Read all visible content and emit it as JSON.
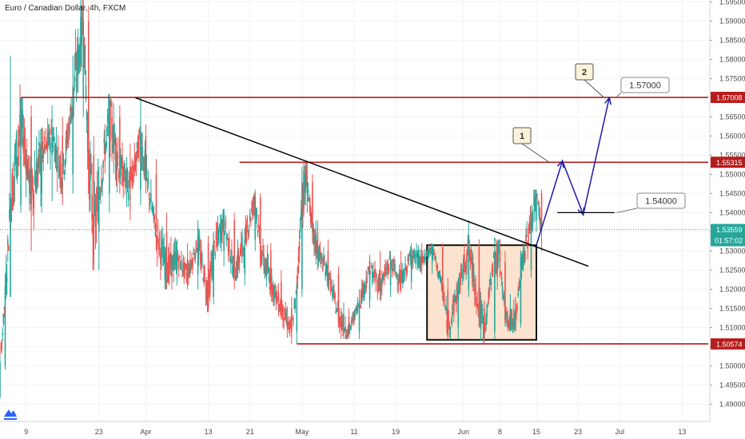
{
  "chart_title": "Euro / Canadian Dollar, 4h, FXCM",
  "countdown": "01:57:02",
  "colors": {
    "bull": "#26a69a",
    "bear": "#ef5350",
    "level": "#b71c1c",
    "trend": "#000000",
    "path": "#1a1aa8",
    "box_fill": "#fbe3cf",
    "grid": "#f0f3f5"
  },
  "chart_data": {
    "type": "candlestick",
    "title": "Euro / Canadian Dollar, 4h, FXCM",
    "ylim": [
      1.4855,
      1.5955
    ],
    "y_ticks": [
      "1.59500",
      "1.59000",
      "1.58500",
      "1.58000",
      "1.57500",
      "1.57000",
      "1.56500",
      "1.56000",
      "1.55500",
      "1.55000",
      "1.54500",
      "1.54000",
      "1.53500",
      "1.53000",
      "1.52500",
      "1.52000",
      "1.51500",
      "1.51000",
      "1.50500",
      "1.50000",
      "1.49500",
      "1.49000"
    ],
    "x_ticks": [
      {
        "label": "9",
        "day": 9
      },
      {
        "label": "23",
        "day": 23
      },
      {
        "label": "Apr",
        "day": 32
      },
      {
        "label": "13",
        "day": 44
      },
      {
        "label": "21",
        "day": 52
      },
      {
        "label": "May",
        "day": 62
      },
      {
        "label": "11",
        "day": 72
      },
      {
        "label": "19",
        "day": 80
      },
      {
        "label": "Jun",
        "day": 93
      },
      {
        "label": "8",
        "day": 100
      },
      {
        "label": "15",
        "day": 107
      },
      {
        "label": "23",
        "day": 115
      },
      {
        "label": "Jul",
        "day": 123
      },
      {
        "label": "13",
        "day": 135
      }
    ],
    "x_range_days": [
      4,
      140
    ],
    "current_price": "1.53559",
    "levels": [
      {
        "value": 1.57008,
        "label": "1.57008",
        "from_day": 8
      },
      {
        "value": 1.55315,
        "label": "1.55315",
        "from_day": 50
      },
      {
        "value": 1.50574,
        "label": "1.50574",
        "from_day": 61
      }
    ],
    "trendline": [
      [
        30,
        1.57
      ],
      [
        117,
        1.526
      ]
    ],
    "range_box": {
      "from_day": 86,
      "to_day": 107,
      "top": 1.5315,
      "bottom": 1.5068
    },
    "projection": [
      [
        107,
        1.5315
      ],
      [
        112,
        1.5535
      ],
      [
        116,
        1.5395
      ],
      [
        121,
        1.57
      ]
    ],
    "targets": [
      {
        "value": 1.54,
        "label": "1.54000",
        "line_from_day": 111,
        "line_to_day": 122
      },
      {
        "value": 1.57,
        "label": "1.57000"
      }
    ],
    "markers": [
      {
        "label": "1"
      },
      {
        "label": "2"
      }
    ],
    "anchors": [
      {
        "x": 1,
        "o": 1.4903,
        "c": 1.4912,
        "h": 1.4935,
        "l": 1.489
      },
      {
        "x": 2,
        "o": 1.4912,
        "c": 1.4945,
        "h": 1.497,
        "l": 1.49
      },
      {
        "x": 3,
        "o": 1.4945,
        "c": 1.492,
        "h": 1.496,
        "l": 1.4905
      },
      {
        "x": 4,
        "o": 1.492,
        "c": 1.5,
        "h": 1.502,
        "l": 1.4915
      },
      {
        "x": 5,
        "o": 1.5,
        "c": 1.518,
        "h": 1.523,
        "l": 1.499
      },
      {
        "x": 6,
        "o": 1.518,
        "c": 1.542,
        "h": 1.581,
        "l": 1.539
      },
      {
        "x": 8,
        "o": 1.542,
        "c": 1.565,
        "h": 1.57,
        "l": 1.54
      },
      {
        "x": 10,
        "o": 1.565,
        "c": 1.545,
        "h": 1.568,
        "l": 1.53
      },
      {
        "x": 12,
        "o": 1.545,
        "c": 1.555,
        "h": 1.562,
        "l": 1.54
      },
      {
        "x": 14,
        "o": 1.555,
        "c": 1.56,
        "h": 1.568,
        "l": 1.543
      },
      {
        "x": 16,
        "o": 1.56,
        "c": 1.55,
        "h": 1.565,
        "l": 1.542
      },
      {
        "x": 18,
        "o": 1.55,
        "c": 1.57,
        "h": 1.581,
        "l": 1.545
      },
      {
        "x": 20,
        "o": 1.57,
        "c": 1.59,
        "h": 1.596,
        "l": 1.565
      },
      {
        "x": 21,
        "o": 1.59,
        "c": 1.555,
        "h": 1.594,
        "l": 1.545
      },
      {
        "x": 22,
        "o": 1.555,
        "c": 1.535,
        "h": 1.56,
        "l": 1.525
      },
      {
        "x": 23,
        "o": 1.535,
        "c": 1.545,
        "h": 1.552,
        "l": 1.525
      },
      {
        "x": 25,
        "o": 1.545,
        "c": 1.565,
        "h": 1.571,
        "l": 1.54
      },
      {
        "x": 27,
        "o": 1.565,
        "c": 1.552,
        "h": 1.568,
        "l": 1.545
      },
      {
        "x": 29,
        "o": 1.552,
        "c": 1.546,
        "h": 1.558,
        "l": 1.538
      },
      {
        "x": 31,
        "o": 1.546,
        "c": 1.56,
        "h": 1.57,
        "l": 1.542
      },
      {
        "x": 32,
        "o": 1.56,
        "c": 1.55,
        "h": 1.563,
        "l": 1.545
      },
      {
        "x": 34,
        "o": 1.55,
        "c": 1.535,
        "h": 1.554,
        "l": 1.53
      },
      {
        "x": 36,
        "o": 1.535,
        "c": 1.525,
        "h": 1.54,
        "l": 1.52
      },
      {
        "x": 38,
        "o": 1.525,
        "c": 1.528,
        "h": 1.533,
        "l": 1.521
      },
      {
        "x": 40,
        "o": 1.528,
        "c": 1.524,
        "h": 1.532,
        "l": 1.52
      },
      {
        "x": 42,
        "o": 1.524,
        "c": 1.532,
        "h": 1.538,
        "l": 1.52
      },
      {
        "x": 44,
        "o": 1.532,
        "c": 1.518,
        "h": 1.534,
        "l": 1.514
      },
      {
        "x": 45,
        "o": 1.518,
        "c": 1.53,
        "h": 1.535,
        "l": 1.516
      },
      {
        "x": 47,
        "o": 1.53,
        "c": 1.538,
        "h": 1.541,
        "l": 1.526
      },
      {
        "x": 49,
        "o": 1.538,
        "c": 1.524,
        "h": 1.54,
        "l": 1.52
      },
      {
        "x": 51,
        "o": 1.524,
        "c": 1.533,
        "h": 1.536,
        "l": 1.521
      },
      {
        "x": 53,
        "o": 1.533,
        "c": 1.544,
        "h": 1.546,
        "l": 1.53
      },
      {
        "x": 54,
        "o": 1.544,
        "c": 1.53,
        "h": 1.545,
        "l": 1.526
      },
      {
        "x": 56,
        "o": 1.53,
        "c": 1.522,
        "h": 1.532,
        "l": 1.518
      },
      {
        "x": 58,
        "o": 1.522,
        "c": 1.515,
        "h": 1.525,
        "l": 1.512
      },
      {
        "x": 60,
        "o": 1.515,
        "c": 1.509,
        "h": 1.518,
        "l": 1.5057
      },
      {
        "x": 61,
        "o": 1.509,
        "c": 1.52,
        "h": 1.522,
        "l": 1.5057
      },
      {
        "x": 62,
        "o": 1.52,
        "c": 1.545,
        "h": 1.552,
        "l": 1.518
      },
      {
        "x": 63,
        "o": 1.545,
        "c": 1.548,
        "h": 1.553,
        "l": 1.54
      },
      {
        "x": 64,
        "o": 1.548,
        "c": 1.535,
        "h": 1.55,
        "l": 1.532
      },
      {
        "x": 65,
        "o": 1.535,
        "c": 1.53,
        "h": 1.538,
        "l": 1.525
      },
      {
        "x": 67,
        "o": 1.53,
        "c": 1.524,
        "h": 1.533,
        "l": 1.52
      },
      {
        "x": 69,
        "o": 1.524,
        "c": 1.513,
        "h": 1.526,
        "l": 1.51
      },
      {
        "x": 71,
        "o": 1.513,
        "c": 1.509,
        "h": 1.515,
        "l": 1.507
      },
      {
        "x": 73,
        "o": 1.509,
        "c": 1.517,
        "h": 1.52,
        "l": 1.507
      },
      {
        "x": 75,
        "o": 1.517,
        "c": 1.525,
        "h": 1.529,
        "l": 1.515
      },
      {
        "x": 77,
        "o": 1.525,
        "c": 1.521,
        "h": 1.53,
        "l": 1.517
      },
      {
        "x": 79,
        "o": 1.521,
        "c": 1.527,
        "h": 1.53,
        "l": 1.518
      },
      {
        "x": 81,
        "o": 1.527,
        "c": 1.522,
        "h": 1.53,
        "l": 1.519
      },
      {
        "x": 83,
        "o": 1.522,
        "c": 1.529,
        "h": 1.532,
        "l": 1.52
      },
      {
        "x": 85,
        "o": 1.529,
        "c": 1.527,
        "h": 1.532,
        "l": 1.524
      },
      {
        "x": 87,
        "o": 1.527,
        "c": 1.531,
        "h": 1.532,
        "l": 1.524
      },
      {
        "x": 89,
        "o": 1.531,
        "c": 1.52,
        "h": 1.532,
        "l": 1.517
      },
      {
        "x": 90,
        "o": 1.52,
        "c": 1.51,
        "h": 1.523,
        "l": 1.507
      },
      {
        "x": 92,
        "o": 1.51,
        "c": 1.52,
        "h": 1.523,
        "l": 1.507
      },
      {
        "x": 94,
        "o": 1.52,
        "c": 1.531,
        "h": 1.538,
        "l": 1.518
      },
      {
        "x": 96,
        "o": 1.531,
        "c": 1.515,
        "h": 1.533,
        "l": 1.51
      },
      {
        "x": 97,
        "o": 1.515,
        "c": 1.509,
        "h": 1.517,
        "l": 1.506
      },
      {
        "x": 99,
        "o": 1.509,
        "c": 1.53,
        "h": 1.533,
        "l": 1.507
      },
      {
        "x": 100,
        "o": 1.53,
        "c": 1.527,
        "h": 1.533,
        "l": 1.523
      },
      {
        "x": 101,
        "o": 1.527,
        "c": 1.514,
        "h": 1.53,
        "l": 1.511
      },
      {
        "x": 103,
        "o": 1.514,
        "c": 1.511,
        "h": 1.518,
        "l": 1.509
      },
      {
        "x": 104,
        "o": 1.511,
        "c": 1.525,
        "h": 1.529,
        "l": 1.51
      },
      {
        "x": 106,
        "o": 1.525,
        "c": 1.538,
        "h": 1.542,
        "l": 1.523
      },
      {
        "x": 107,
        "o": 1.538,
        "c": 1.545,
        "h": 1.546,
        "l": 1.535
      },
      {
        "x": 108,
        "o": 1.545,
        "c": 1.536,
        "h": 1.546,
        "l": 1.53
      }
    ]
  }
}
